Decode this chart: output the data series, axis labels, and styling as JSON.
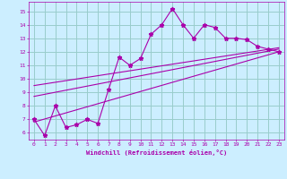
{
  "xlabel": "Windchill (Refroidissement éolien,°C)",
  "xlim": [
    -0.5,
    23.5
  ],
  "ylim": [
    5.5,
    15.7
  ],
  "xticks": [
    0,
    1,
    2,
    3,
    4,
    5,
    6,
    7,
    8,
    9,
    10,
    11,
    12,
    13,
    14,
    15,
    16,
    17,
    18,
    19,
    20,
    21,
    22,
    23
  ],
  "yticks": [
    6,
    7,
    8,
    9,
    10,
    11,
    12,
    13,
    14,
    15
  ],
  "bg_color": "#cceeff",
  "line_color": "#aa00aa",
  "grid_color": "#99cccc",
  "main_x": [
    0,
    1,
    2,
    3,
    4,
    5,
    6,
    7,
    8,
    9,
    10,
    11,
    12,
    13,
    14,
    15,
    16,
    17,
    18,
    19,
    20,
    21,
    22,
    23
  ],
  "main_y": [
    7.0,
    5.8,
    8.0,
    6.4,
    6.6,
    7.0,
    6.7,
    9.2,
    11.6,
    11.0,
    11.5,
    13.3,
    14.0,
    15.2,
    14.0,
    13.0,
    14.0,
    13.8,
    13.0,
    13.0,
    12.9,
    12.4,
    12.2,
    12.0
  ],
  "line1_x": [
    0,
    23
  ],
  "line1_y": [
    8.7,
    12.2
  ],
  "line2_x": [
    0,
    23
  ],
  "line2_y": [
    6.8,
    12.0
  ],
  "line3_x": [
    0,
    23
  ],
  "line3_y": [
    9.5,
    12.3
  ]
}
